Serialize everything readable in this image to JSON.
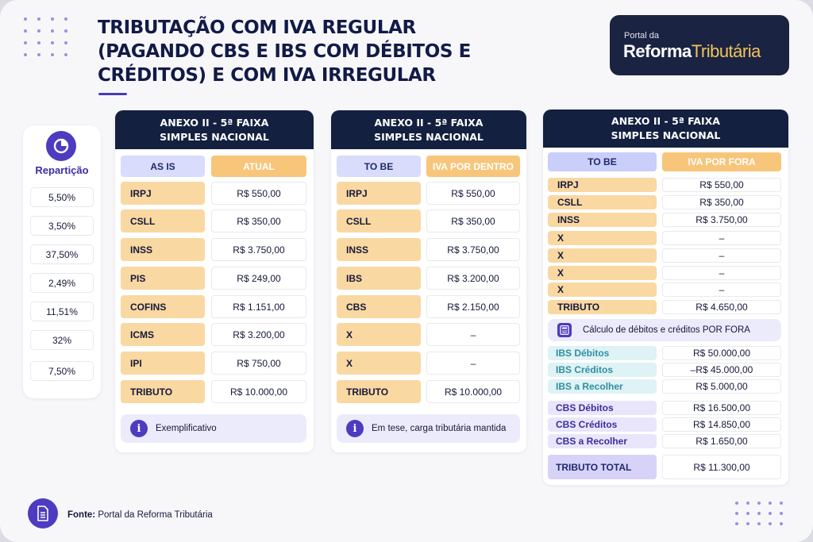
{
  "title": "TRIBUTAÇÃO COM IVA REGULAR (PAGANDO CBS E IBS COM DÉBITOS E CRÉDITOS) E COM IVA IRREGULAR",
  "logo": {
    "line1": "Portal da",
    "word1": "Reforma",
    "word2": "Tributária"
  },
  "repartition": {
    "label": "Repartição",
    "icon": "pie-chart-icon",
    "values": [
      "5,50%",
      "3,50%",
      "37,50%",
      "2,49%",
      "11,51%",
      "32%",
      "7,50%"
    ]
  },
  "panel1": {
    "header_line1": "ANEXO II - 5ª FAIXA",
    "header_line2": "SIMPLES NACIONAL",
    "col_left": "AS IS",
    "col_right": "ATUAL",
    "rows": [
      {
        "label": "IRPJ",
        "value": "R$ 550,00"
      },
      {
        "label": "CSLL",
        "value": "R$ 350,00"
      },
      {
        "label": "INSS",
        "value": "R$ 3.750,00"
      },
      {
        "label": "PIS",
        "value": "R$ 249,00"
      },
      {
        "label": "COFINS",
        "value": "R$ 1.151,00"
      },
      {
        "label": "ICMS",
        "value": "R$ 3.200,00"
      },
      {
        "label": "IPI",
        "value": "R$ 750,00"
      },
      {
        "label": "TRIBUTO",
        "value": "R$ 10.000,00"
      }
    ],
    "note": "Exemplificativo"
  },
  "panel2": {
    "header_line1": "ANEXO II - 5ª FAIXA",
    "header_line2": "SIMPLES NACIONAL",
    "col_left": "TO BE",
    "col_right": "IVA POR DENTRO",
    "rows": [
      {
        "label": "IRPJ",
        "value": "R$ 550,00"
      },
      {
        "label": "CSLL",
        "value": "R$ 350,00"
      },
      {
        "label": "INSS",
        "value": "R$ 3.750,00"
      },
      {
        "label": "IBS",
        "value": "R$ 3.200,00"
      },
      {
        "label": "CBS",
        "value": "R$ 2.150,00"
      },
      {
        "label": "X",
        "value": "–"
      },
      {
        "label": "X",
        "value": "–"
      },
      {
        "label": "TRIBUTO",
        "value": "R$ 10.000,00"
      }
    ],
    "note": "Em tese, carga tributária mantida"
  },
  "panel3": {
    "header_line1": "ANEXO II - 5ª FAIXA",
    "header_line2": "SIMPLES NACIONAL",
    "col_left": "TO BE",
    "col_right": "IVA POR FORA",
    "rows": [
      {
        "label": "IRPJ",
        "value": "R$ 550,00"
      },
      {
        "label": "CSLL",
        "value": "R$ 350,00"
      },
      {
        "label": "INSS",
        "value": "R$ 3.750,00"
      },
      {
        "label": "X",
        "value": "–"
      },
      {
        "label": "X",
        "value": "–"
      },
      {
        "label": "X",
        "value": "–"
      },
      {
        "label": "X",
        "value": "–"
      },
      {
        "label": "TRIBUTO",
        "value": "R$ 4.650,00"
      }
    ],
    "calc_note": "Cálculo de débitos e créditos POR FORA",
    "ibs_rows": [
      {
        "label": "IBS Débitos",
        "value": "R$ 50.000,00"
      },
      {
        "label": "IBS Créditos",
        "value": "–R$ 45.000,00"
      },
      {
        "label": "IBS a Recolher",
        "value": "R$ 5.000,00"
      }
    ],
    "cbs_rows": [
      {
        "label": "CBS Débitos",
        "value": "R$ 16.500,00"
      },
      {
        "label": "CBS Créditos",
        "value": "R$ 14.850,00"
      },
      {
        "label": "CBS a Recolher",
        "value": "R$ 1.650,00"
      }
    ],
    "total_label": "TRIBUTO TOTAL",
    "total_value": "R$ 11.300,00"
  },
  "footer": {
    "label": "Fonte:",
    "text": "Portal da Reforma Tributária"
  },
  "colors": {
    "navy": "#13203f",
    "purple": "#4d3bc0",
    "orange": "#f9d8a2",
    "lavender": "#d9dcfb",
    "teal": "#2e8fa1"
  }
}
